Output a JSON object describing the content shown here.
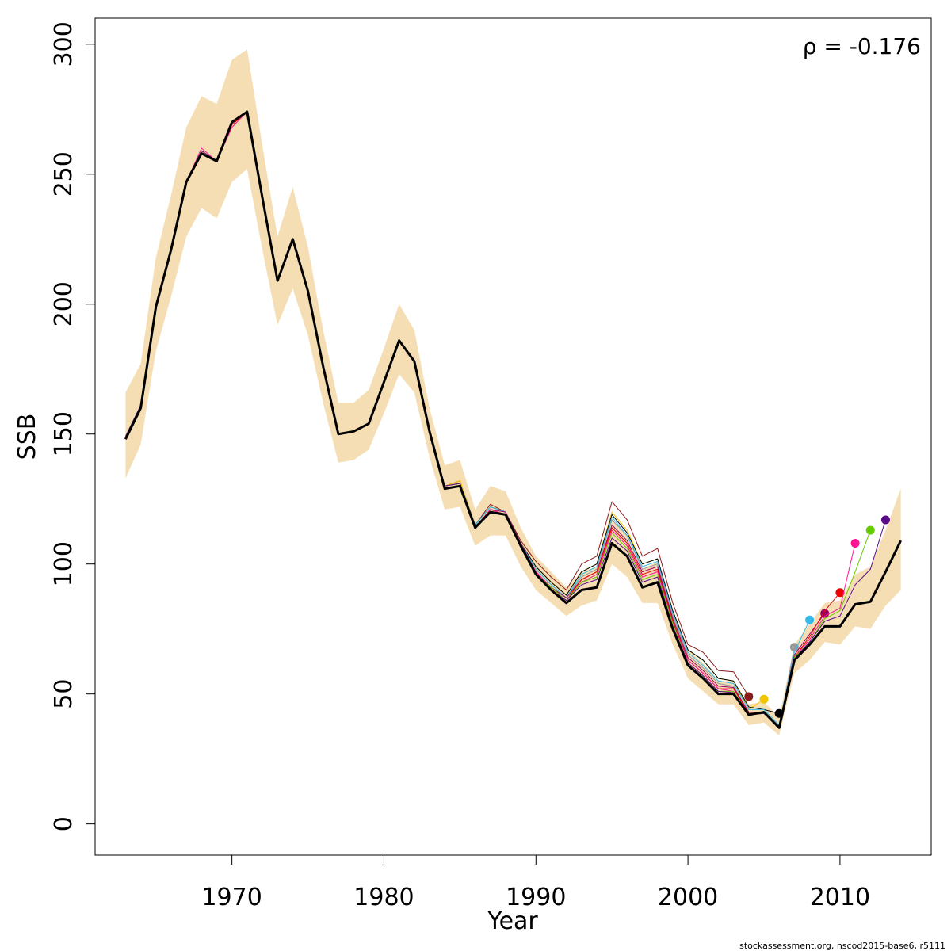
{
  "chart_data": {
    "type": "line",
    "x_label": "Year",
    "y_label": "SSB",
    "annotation": "ρ = -0.176",
    "footer": "stockassessment.org, nscod2015-base6, r5111",
    "xlim": [
      1961,
      2016
    ],
    "ylim": [
      -12,
      310
    ],
    "xticks": [
      1970,
      1980,
      1990,
      2000,
      2010
    ],
    "yticks": [
      0,
      50,
      100,
      150,
      200,
      250,
      300
    ],
    "x": [
      1963,
      1964,
      1965,
      1966,
      1967,
      1968,
      1969,
      1970,
      1971,
      1972,
      1973,
      1974,
      1975,
      1976,
      1977,
      1978,
      1979,
      1980,
      1981,
      1982,
      1983,
      1984,
      1985,
      1986,
      1987,
      1988,
      1989,
      1990,
      1991,
      1992,
      1993,
      1994,
      1995,
      1996,
      1997,
      1998,
      1999,
      2000,
      2001,
      2002,
      2003,
      2004,
      2005,
      2006,
      2007,
      2008,
      2009,
      2010,
      2011,
      2012,
      2013,
      2014
    ],
    "band": {
      "color": "#f5deb3",
      "upper": [
        166,
        177,
        218,
        242,
        268,
        280,
        277,
        294,
        298,
        261,
        226,
        245,
        222,
        190,
        162,
        162,
        167,
        183,
        200,
        190,
        160,
        138,
        140,
        121,
        130,
        128,
        114,
        103,
        97,
        91,
        97,
        99,
        117,
        111,
        98,
        101,
        82,
        67,
        62,
        55,
        55,
        46,
        47,
        41,
        69,
        77,
        85,
        86,
        96,
        99,
        113,
        129
      ],
      "lower": [
        133,
        146,
        182,
        203,
        226,
        237,
        233,
        247,
        252,
        221,
        192,
        206,
        188,
        162,
        139,
        140,
        144,
        158,
        173,
        166,
        141,
        121,
        122,
        107,
        111,
        111,
        99,
        90,
        85,
        80,
        84,
        86,
        100,
        95,
        85,
        85,
        69,
        56,
        51,
        46,
        46,
        38,
        39,
        34,
        58,
        63,
        70,
        69,
        76,
        75,
        84,
        90
      ]
    },
    "series": [
      {
        "color": "#8b1a1a",
        "values": [
          149,
          161,
          200,
          221,
          247,
          259,
          255,
          270,
          274,
          241,
          209,
          225,
          205,
          176,
          150,
          151,
          154,
          170,
          186,
          178,
          151,
          130,
          132,
          115,
          123,
          120,
          109,
          101,
          95,
          90,
          100,
          103,
          124,
          117,
          103,
          106,
          85,
          69,
          66,
          59,
          58.5,
          49,
          null,
          null,
          null,
          null,
          null,
          null,
          null,
          null,
          null,
          null
        ]
      },
      {
        "color": "#f2c500",
        "values": [
          149,
          161,
          200,
          221,
          247,
          259,
          255,
          270,
          274,
          241,
          209,
          225,
          205,
          176,
          150,
          151,
          154,
          170,
          186,
          178,
          151,
          130,
          132,
          115,
          122,
          120,
          108,
          99,
          93,
          88,
          97,
          100,
          120,
          113,
          100,
          102,
          82,
          67,
          63,
          56,
          55,
          44,
          48,
          null,
          null,
          null,
          null,
          null,
          null,
          null,
          null,
          null
        ]
      },
      {
        "color": "#000000",
        "values": [
          149,
          161,
          200,
          221,
          247,
          258,
          255,
          270,
          274,
          241,
          209,
          225,
          205,
          176,
          150,
          151,
          154,
          170,
          186,
          178,
          151,
          130,
          131,
          115,
          122,
          120,
          108,
          99,
          93,
          88,
          97,
          100,
          119,
          112,
          100,
          102,
          82,
          67,
          63,
          56,
          55,
          45,
          44,
          42.5,
          null,
          null,
          null,
          null,
          null,
          null,
          null,
          null
        ]
      },
      {
        "color": "#999999",
        "values": [
          149,
          161,
          200,
          221,
          247,
          258,
          255,
          270,
          274,
          241,
          209,
          225,
          205,
          176,
          150,
          151,
          154,
          170,
          186,
          178,
          151,
          130,
          131,
          115,
          122,
          120,
          108,
          98,
          92,
          87,
          95,
          98,
          117,
          111,
          98,
          100,
          80,
          65,
          60,
          54,
          53,
          43,
          43,
          37,
          68,
          null,
          null,
          null,
          null,
          null,
          null,
          null
        ]
      },
      {
        "color": "#33bbee",
        "values": [
          149,
          161,
          200,
          221,
          247,
          258,
          255,
          270,
          274,
          241,
          209,
          225,
          205,
          176,
          150,
          151,
          154,
          170,
          186,
          178,
          151,
          130,
          131,
          115,
          122,
          120,
          108,
          98,
          92,
          87,
          96,
          99,
          118,
          111,
          99,
          101,
          81,
          66,
          61,
          55,
          54,
          44,
          44,
          38,
          66,
          78.5,
          null,
          null,
          null,
          null,
          null,
          null
        ]
      },
      {
        "color": "#990066",
        "values": [
          149,
          161,
          200,
          221,
          247,
          259,
          255,
          269,
          274,
          241,
          209,
          225,
          205,
          176,
          150,
          151,
          154,
          170,
          186,
          178,
          151,
          130,
          131,
          114,
          121,
          120,
          108,
          97,
          91,
          87,
          94,
          97,
          115,
          109,
          97,
          99,
          79,
          64,
          59,
          53,
          52.5,
          43,
          43,
          37.5,
          65,
          73,
          81,
          null,
          null,
          null,
          null,
          null
        ]
      },
      {
        "color": "#ee0000",
        "values": [
          149,
          161,
          200,
          221,
          247,
          259,
          255,
          269,
          274,
          241,
          209,
          225,
          205,
          176,
          150,
          151,
          154,
          170,
          186,
          178,
          151,
          130,
          131,
          114,
          121,
          119,
          107,
          97,
          91,
          86,
          94,
          97,
          114,
          108,
          96,
          98,
          78,
          63,
          58,
          52,
          52,
          42.5,
          43,
          37,
          64,
          72,
          82,
          89,
          null,
          null,
          null,
          null
        ]
      },
      {
        "color": "#ff1493",
        "values": [
          149,
          161,
          200,
          221,
          247,
          260,
          255,
          268,
          274,
          241,
          209,
          225,
          205,
          176,
          150,
          151,
          154,
          170,
          186,
          178,
          151,
          130,
          131,
          114,
          121,
          119,
          107,
          97,
          91,
          86,
          93,
          96,
          113,
          107,
          95,
          97,
          77,
          63,
          58,
          52,
          51,
          42,
          42.5,
          37,
          64,
          71,
          80,
          83,
          108,
          null,
          null,
          null
        ]
      },
      {
        "color": "#66cc00",
        "values": [
          149,
          161,
          200,
          221,
          247,
          259,
          255,
          270,
          274,
          241,
          209,
          225,
          205,
          176,
          150,
          151,
          154,
          170,
          186,
          178,
          151,
          130,
          131,
          114,
          120,
          119,
          107,
          96,
          91,
          86,
          93,
          95,
          112,
          106,
          94,
          96,
          77,
          62,
          57,
          51,
          51,
          42,
          42.5,
          37,
          64,
          70,
          79,
          82,
          97,
          113,
          null,
          null
        ]
      },
      {
        "color": "#5a0a8a",
        "values": [
          149,
          161,
          200,
          221,
          247,
          259,
          255,
          270,
          274,
          241,
          209,
          225,
          205,
          176,
          150,
          151,
          154,
          170,
          186,
          178,
          151,
          130,
          131,
          114,
          120,
          119,
          107,
          96,
          90,
          86,
          92,
          94,
          110,
          105,
          93,
          95,
          76,
          62,
          57,
          51,
          50.5,
          42,
          42.5,
          37,
          63.5,
          70,
          78,
          80,
          92,
          98,
          117,
          null
        ]
      },
      {
        "color": "#000000",
        "values": [
          148,
          160,
          199,
          221,
          247,
          258,
          255,
          270,
          274,
          241,
          209,
          225,
          205,
          176,
          150,
          151,
          154,
          170,
          186,
          178,
          151,
          129,
          130,
          114,
          120,
          119,
          107,
          96,
          90,
          85,
          90,
          91,
          108,
          103,
          91,
          93,
          75,
          61,
          56,
          50,
          50,
          42,
          43,
          37,
          63,
          69,
          76,
          76,
          84.5,
          85.5,
          97,
          109
        ]
      }
    ]
  }
}
